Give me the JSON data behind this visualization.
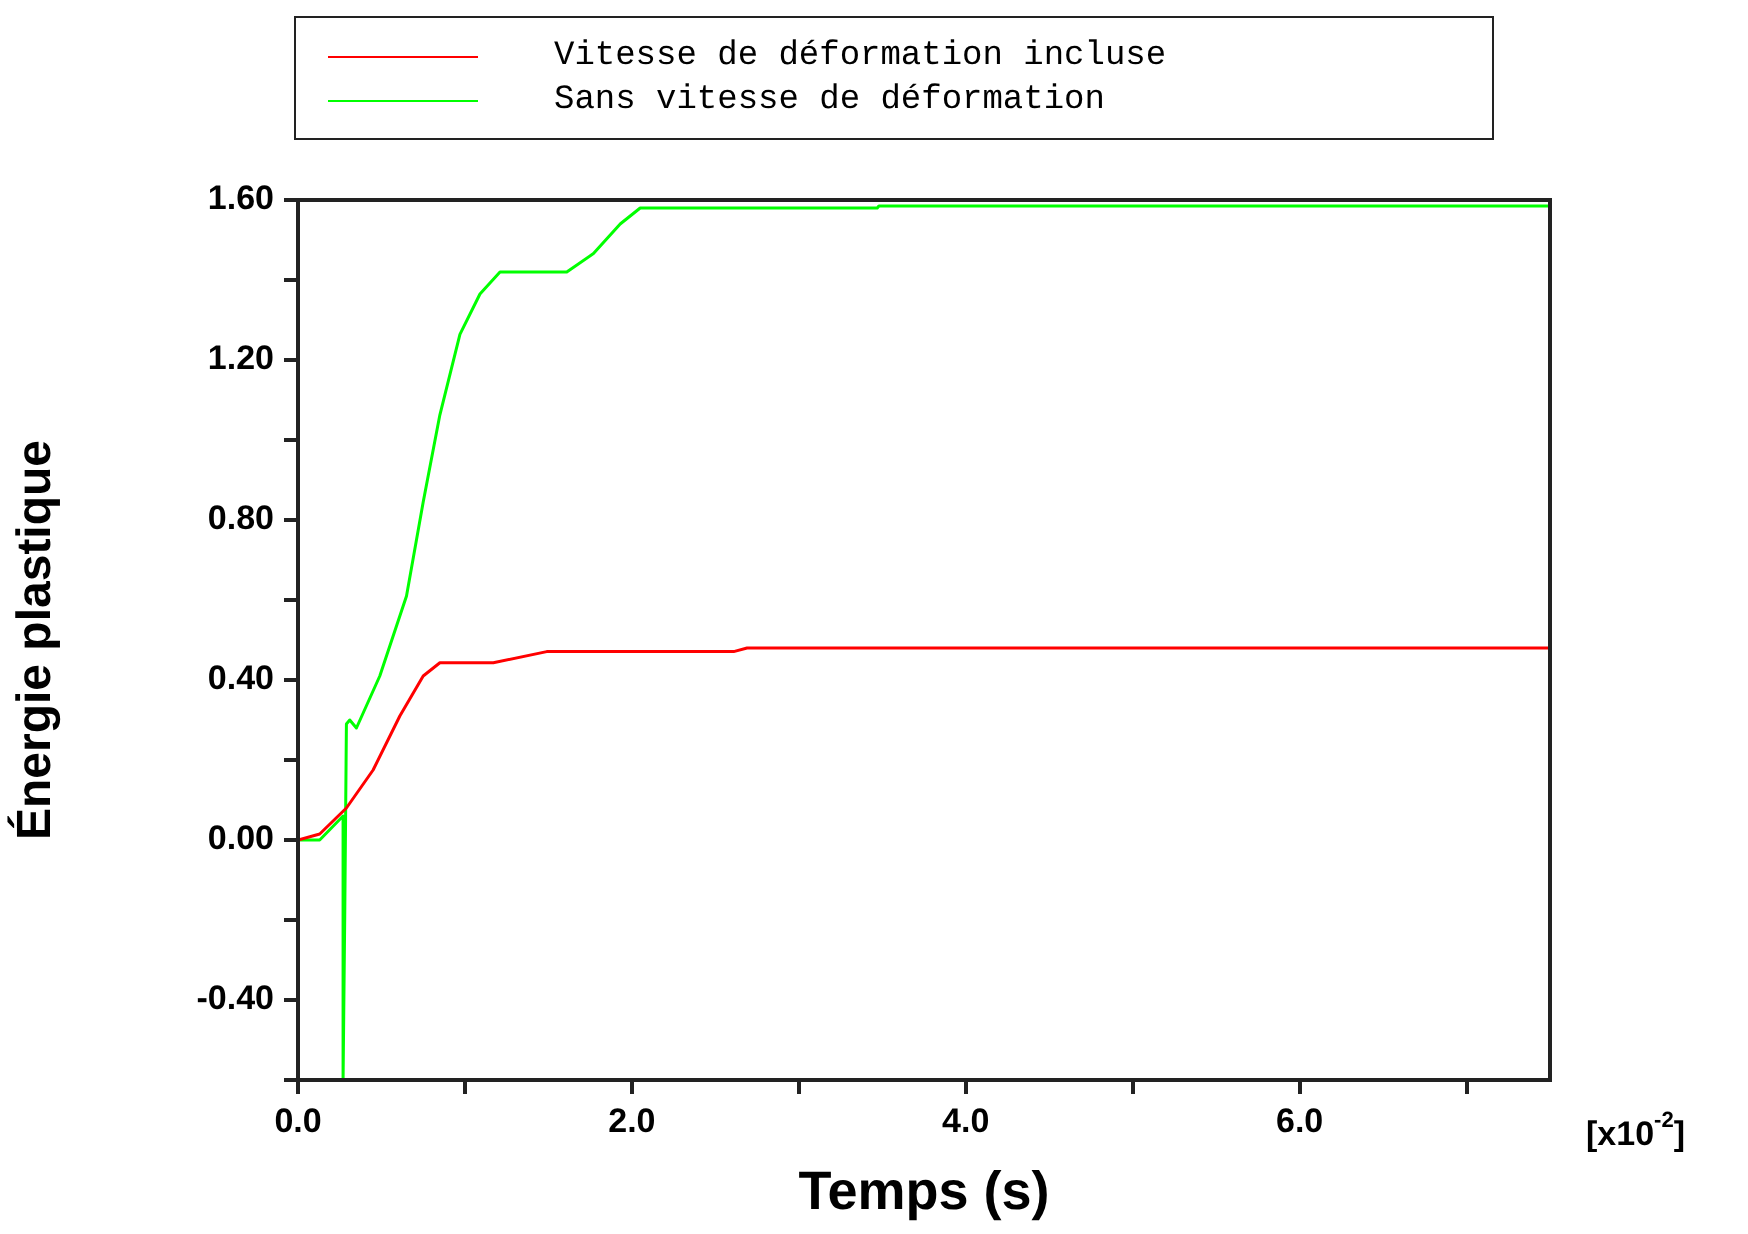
{
  "chart_data": {
    "type": "line",
    "xlabel": "Temps (s)",
    "ylabel": "Énergie plastique",
    "legend": "top",
    "annotations": [
      "[x10$^{-2}$]"
    ],
    "xlim": [
      0,
      7.5
    ],
    "ylim": [
      -0.6,
      1.6
    ],
    "xticks": [
      {
        "value": 0,
        "label": "0.0"
      },
      {
        "value": 1,
        "label": null
      },
      {
        "value": 2,
        "label": "2.0"
      },
      {
        "value": 3,
        "label": null
      },
      {
        "value": 4,
        "label": "4.0"
      },
      {
        "value": 5,
        "label": null
      },
      {
        "value": 6,
        "label": "6.0"
      },
      {
        "value": 7,
        "label": null
      }
    ],
    "yticks": [
      {
        "value": -0.6,
        "label": null
      },
      {
        "value": -0.4,
        "label": "-0.40"
      },
      {
        "value": -0.2,
        "label": null
      },
      {
        "value": 0,
        "label": "0.00"
      },
      {
        "value": 0.2,
        "label": null
      },
      {
        "value": 0.4,
        "label": "0.40"
      },
      {
        "value": 0.6,
        "label": null
      },
      {
        "value": 0.8,
        "label": "0.80"
      },
      {
        "value": 1.0,
        "label": null
      },
      {
        "value": 1.2,
        "label": "1.20"
      },
      {
        "value": 1.4,
        "label": null
      },
      {
        "value": 1.6,
        "label": "1.60"
      }
    ],
    "grid": false,
    "series": [
      {
        "name": "Vitesse de déformation incluse",
        "color": "#ff0000",
        "x": [
          0,
          0.13,
          0.29,
          0.45,
          0.61,
          0.75,
          0.85,
          1.17,
          1.49,
          2.61,
          2.69,
          7.5
        ],
        "values": [
          0,
          0.015,
          0.08,
          0.175,
          0.31,
          0.41,
          0.443,
          0.443,
          0.471,
          0.471,
          0.48,
          0.48
        ]
      },
      {
        "name": "Sans vitesse de déformation",
        "color": "#00ff00",
        "x": [
          0,
          0.13,
          0.27,
          0.27,
          0.28,
          0.29,
          0.31,
          0.35,
          0.49,
          0.65,
          0.75,
          0.85,
          0.97,
          1.09,
          1.21,
          1.61,
          1.77,
          1.93,
          2.05,
          3.47,
          3.48,
          7.5
        ],
        "values": [
          0,
          0,
          0.06,
          -0.6,
          -0.19,
          0.29,
          0.3,
          0.28,
          0.41,
          0.61,
          0.845,
          1.063,
          1.264,
          1.365,
          1.42,
          1.42,
          1.466,
          1.54,
          1.58,
          1.58,
          1.585,
          1.585
        ]
      }
    ]
  }
}
